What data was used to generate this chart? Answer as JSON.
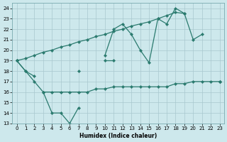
{
  "xlabel": "Humidex (Indice chaleur)",
  "x": [
    0,
    1,
    2,
    3,
    4,
    5,
    6,
    7,
    8,
    9,
    10,
    11,
    12,
    13,
    14,
    15,
    16,
    17,
    18,
    19,
    20,
    21,
    22,
    23
  ],
  "line_zigzag": [
    19,
    18,
    17,
    16,
    14,
    14,
    13,
    14.5,
    null,
    null,
    19,
    19,
    null,
    null,
    null,
    null,
    null,
    null,
    null,
    null,
    null,
    null,
    null,
    null
  ],
  "line_flat": [
    null,
    null,
    null,
    16,
    16,
    16,
    16,
    16,
    16,
    16.3,
    16.3,
    16.5,
    16.5,
    16.5,
    16.5,
    16.5,
    16.5,
    16.5,
    16.8,
    16.8,
    17,
    17,
    17,
    17
  ],
  "line_upper": [
    19,
    18,
    17.5,
    null,
    null,
    null,
    null,
    18,
    null,
    null,
    19.5,
    22,
    22.5,
    21.5,
    20,
    18.8,
    23,
    22.5,
    24,
    23.5,
    21,
    21.5,
    null,
    17
  ],
  "line_trend": [
    19,
    19.2,
    19.5,
    19.8,
    20.0,
    20.3,
    20.5,
    20.8,
    21.0,
    21.3,
    21.5,
    21.8,
    22.0,
    22.3,
    22.5,
    22.7,
    23.0,
    23.3,
    23.6,
    23.5,
    null,
    null,
    null,
    17
  ],
  "line_color": "#2a7a6e",
  "bg_color": "#cde8ec",
  "grid_color": "#a8c8ce",
  "ylim": [
    13,
    24.5
  ],
  "xlim": [
    -0.5,
    23.5
  ],
  "yticks": [
    13,
    14,
    15,
    16,
    17,
    18,
    19,
    20,
    21,
    22,
    23,
    24
  ],
  "xticks": [
    0,
    1,
    2,
    3,
    4,
    5,
    6,
    7,
    8,
    9,
    10,
    11,
    12,
    13,
    14,
    15,
    16,
    17,
    18,
    19,
    20,
    21,
    22,
    23
  ]
}
